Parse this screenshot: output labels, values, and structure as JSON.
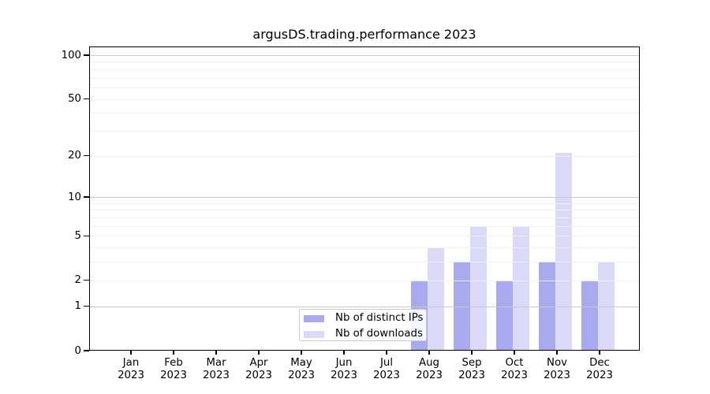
{
  "chart": {
    "title": "argusDS.trading.performance 2023",
    "chart_data": {
      "type": "bar",
      "title": "argusDS.trading.performance 2023",
      "xlabel": "",
      "ylabel": "",
      "categories": [
        "Jan",
        "Feb",
        "Mar",
        "Apr",
        "May",
        "Jun",
        "Jul",
        "Aug",
        "Sep",
        "Oct",
        "Nov",
        "Dec"
      ],
      "category_year": "2023",
      "series": [
        {
          "name": "Nb of distinct IPs",
          "color": "#a9a9ef",
          "values": [
            0,
            0,
            0,
            0,
            0,
            0,
            0,
            2,
            3,
            2,
            3,
            2
          ]
        },
        {
          "name": "Nb of downloads",
          "color": "#dadaf8",
          "values": [
            0,
            0,
            0,
            0,
            0,
            0,
            0,
            4,
            6,
            6,
            21,
            3
          ]
        }
      ],
      "y_scale": "log1p",
      "ylim": [
        0,
        115
      ],
      "y_ticks": [
        0,
        1,
        2,
        5,
        10,
        20,
        50,
        100
      ],
      "y_major_gridlines": [
        1,
        10,
        100
      ],
      "y_minor_gridlines": [
        2,
        3,
        4,
        5,
        6,
        7,
        8,
        9,
        20,
        30,
        40,
        50,
        60,
        70,
        80,
        90
      ],
      "grid": "on",
      "legend_position": "lower center-left inside plot"
    }
  }
}
